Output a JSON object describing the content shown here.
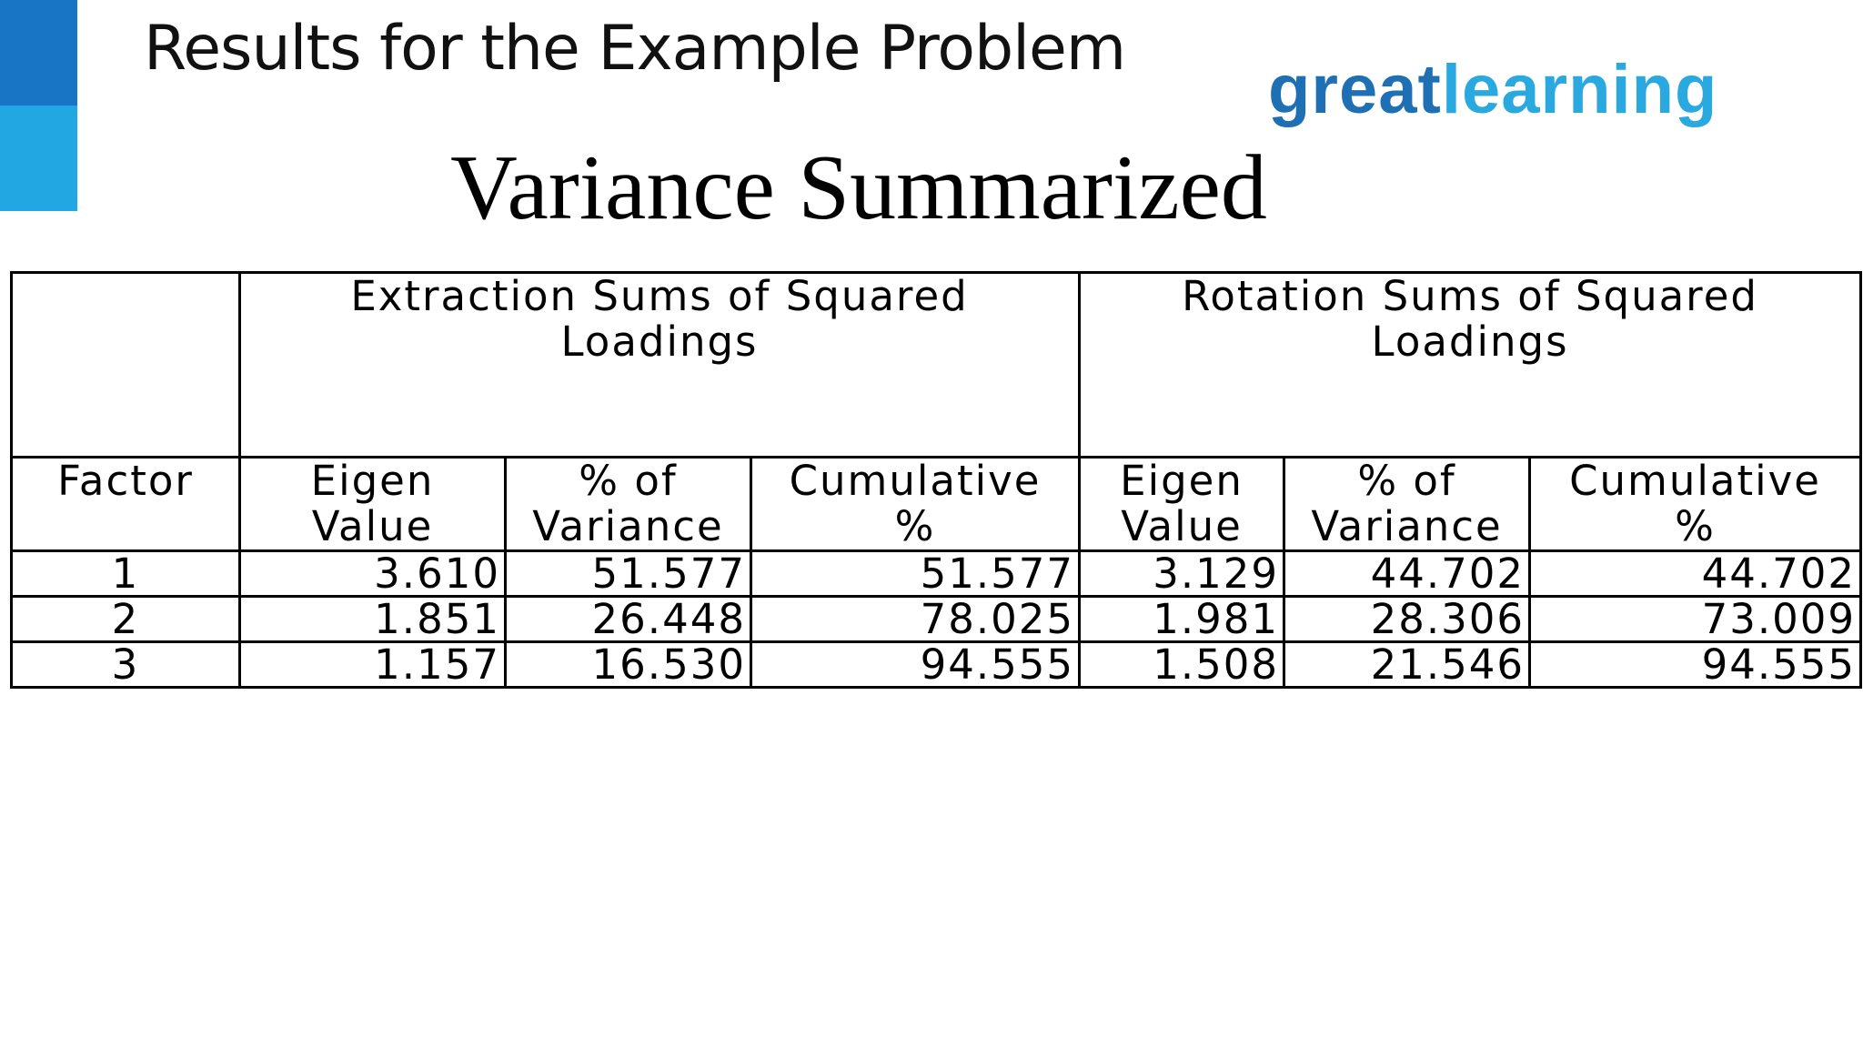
{
  "slide": {
    "title": "Results for the Example Problem",
    "heading": "Variance Summarized"
  },
  "logo": {
    "part1": "great",
    "part2": "learning",
    "color_primary": "#1f6fb5",
    "color_secondary": "#2aa8e0"
  },
  "colors": {
    "accent_dark": "#1875c5",
    "accent_light": "#22a7e3"
  },
  "table": {
    "group_headers": [
      "Extraction Sums of Squared Loadings",
      "Rotation Sums of Squared Loadings"
    ],
    "columns": [
      {
        "line1": "Factor",
        "line2": ""
      },
      {
        "line1": "Eigen",
        "line2": "Value"
      },
      {
        "line1": "% of",
        "line2": "Variance"
      },
      {
        "line1": "Cumulative",
        "line2": "%"
      },
      {
        "line1": "Eigen",
        "line2": "Value"
      },
      {
        "line1": "% of",
        "line2": "Variance"
      },
      {
        "line1": "Cumulative",
        "line2": "%"
      }
    ],
    "rows": [
      [
        "1",
        "3.610",
        "51.577",
        "51.577",
        "3.129",
        "44.702",
        "44.702"
      ],
      [
        "2",
        "1.851",
        "26.448",
        "78.025",
        "1.981",
        "28.306",
        "73.009"
      ],
      [
        "3",
        "1.157",
        "16.530",
        "94.555",
        "1.508",
        "21.546",
        "94.555"
      ]
    ]
  }
}
